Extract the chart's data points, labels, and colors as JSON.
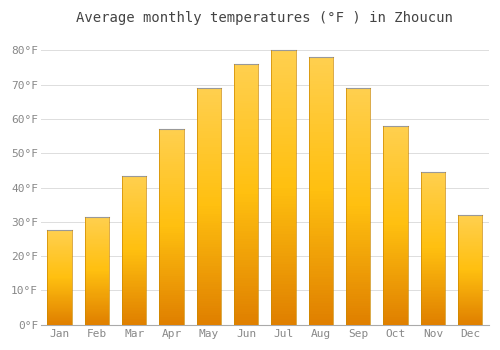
{
  "title": "Average monthly temperatures (°F ) in Zhoucun",
  "months": [
    "Jan",
    "Feb",
    "Mar",
    "Apr",
    "May",
    "Jun",
    "Jul",
    "Aug",
    "Sep",
    "Oct",
    "Nov",
    "Dec"
  ],
  "values": [
    27.5,
    31.5,
    43.5,
    57.0,
    69.0,
    76.0,
    80.0,
    78.0,
    69.0,
    58.0,
    44.5,
    32.0
  ],
  "bar_color_main": "#FFA500",
  "bar_color_light": "#FFD04D",
  "bar_color_dark": "#E08000",
  "bar_top_edge_color": "#999999",
  "background_color": "#FFFFFF",
  "grid_color": "#DDDDDD",
  "title_color": "#444444",
  "tick_label_color": "#888888",
  "ylim": [
    0,
    85
  ],
  "yticks": [
    0,
    10,
    20,
    30,
    40,
    50,
    60,
    70,
    80
  ],
  "ytick_labels": [
    "0°F",
    "10°F",
    "20°F",
    "30°F",
    "40°F",
    "50°F",
    "60°F",
    "70°F",
    "80°F"
  ],
  "title_fontsize": 10,
  "tick_fontsize": 8,
  "figsize": [
    5.0,
    3.5
  ],
  "dpi": 100
}
